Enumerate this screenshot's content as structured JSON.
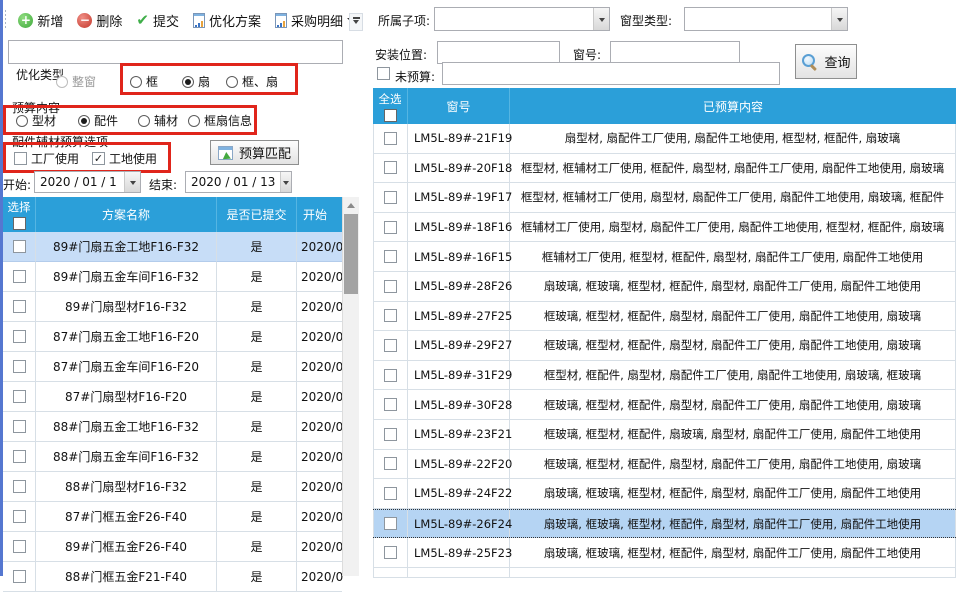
{
  "toolbar": {
    "add": "新增",
    "delete": "删除",
    "submit": "提交",
    "optimize_plan": "优化方案",
    "purchase_detail": "采购明细"
  },
  "left_panel": {
    "search_value": "",
    "opt_type": {
      "label": "优化类型",
      "options": [
        {
          "label": "整窗",
          "checked": false,
          "disabled": true
        },
        {
          "label": "框",
          "checked": false,
          "disabled": false
        },
        {
          "label": "扇",
          "checked": true,
          "disabled": false
        },
        {
          "label": "框、扇",
          "checked": false,
          "disabled": false
        }
      ]
    },
    "budget_content": {
      "label": "预算内容",
      "options": [
        {
          "label": "型材",
          "checked": false,
          "disabled": false
        },
        {
          "label": "配件",
          "checked": true,
          "disabled": false
        },
        {
          "label": "辅材",
          "checked": false,
          "disabled": false
        },
        {
          "label": "框扇信息",
          "checked": false,
          "disabled": false
        }
      ]
    },
    "accessory": {
      "label": "配件辅材预算选项",
      "options": [
        {
          "label": "工厂使用",
          "checked": false
        },
        {
          "label": "工地使用",
          "checked": true
        }
      ]
    },
    "budget_match": "预算匹配",
    "date_start_label": "开始:",
    "date_start": "2020 / 01 / 1",
    "date_end_label": "结束:",
    "date_end": "2020 / 01 / 13",
    "table": {
      "headers": [
        "选择",
        "方案名称",
        "是否已提交",
        "开始"
      ],
      "rows": [
        {
          "name": "89#门扇五金工地F16-F32",
          "submitted": "是",
          "start": "2020/0",
          "selected": true
        },
        {
          "name": "89#门扇五金车间F16-F32",
          "submitted": "是",
          "start": "2020/0",
          "selected": false
        },
        {
          "name": "89#门扇型材F16-F32",
          "submitted": "是",
          "start": "2020/0",
          "selected": false
        },
        {
          "name": "87#门扇五金工地F16-F20",
          "submitted": "是",
          "start": "2020/0",
          "selected": false
        },
        {
          "name": "87#门扇五金车间F16-F20",
          "submitted": "是",
          "start": "2020/0",
          "selected": false
        },
        {
          "name": "87#门扇型材F16-F20",
          "submitted": "是",
          "start": "2020/0",
          "selected": false
        },
        {
          "name": "88#门扇五金工地F16-F32",
          "submitted": "是",
          "start": "2020/0",
          "selected": false
        },
        {
          "name": "88#门扇五金车间F16-F32",
          "submitted": "是",
          "start": "2020/0",
          "selected": false
        },
        {
          "name": "88#门扇型材F16-F32",
          "submitted": "是",
          "start": "2020/0",
          "selected": false
        },
        {
          "name": "87#门框五金F26-F40",
          "submitted": "是",
          "start": "2020/0",
          "selected": false
        },
        {
          "name": "89#门框五金F26-F40",
          "submitted": "是",
          "start": "2020/0",
          "selected": false
        },
        {
          "name": "88#门框五金F21-F40",
          "submitted": "是",
          "start": "2020/0",
          "selected": false
        }
      ]
    }
  },
  "right_panel": {
    "filters": {
      "sub_item_label": "所属子项:",
      "sub_item_value": "",
      "window_type_label": "窗型类型:",
      "window_type_value": "",
      "install_pos_label": "安装位置:",
      "install_pos_value": "",
      "window_no_label": "窗号:",
      "window_no_value": "",
      "not_budgeted_label": "未预算:",
      "not_budgeted_value": "",
      "not_budgeted_checked": false,
      "query_label": "查询"
    },
    "table": {
      "select_all": "全选",
      "headers": [
        "窗号",
        "已预算内容"
      ],
      "rows": [
        {
          "no": "LM5L-89#-21F19",
          "content": "扇型材, 扇配件工厂使用, 扇配件工地使用, 框型材, 框配件, 扇玻璃",
          "selected": false
        },
        {
          "no": "LM5L-89#-20F18",
          "content": "框型材, 框辅材工厂使用, 框配件, 扇型材, 扇配件工厂使用, 扇配件工地使用, 扇玻璃",
          "selected": false
        },
        {
          "no": "LM5L-89#-19F17",
          "content": "框型材, 框辅材工厂使用, 扇型材, 扇配件工厂使用, 扇配件工地使用, 扇玻璃, 框配件",
          "selected": false
        },
        {
          "no": "LM5L-89#-18F16",
          "content": "框辅材工厂使用, 扇型材, 扇配件工厂使用, 扇配件工地使用, 框型材, 框配件, 扇玻璃",
          "selected": false
        },
        {
          "no": "LM5L-89#-16F15",
          "content": "框辅材工厂使用, 框型材, 框配件, 扇型材, 扇配件工厂使用, 扇配件工地使用",
          "selected": false
        },
        {
          "no": "LM5L-89#-28F26",
          "content": "扇玻璃, 框玻璃, 框型材, 框配件, 扇型材, 扇配件工厂使用, 扇配件工地使用",
          "selected": false
        },
        {
          "no": "LM5L-89#-27F25",
          "content": "框玻璃, 框型材, 框配件, 扇型材, 扇配件工厂使用, 扇配件工地使用, 扇玻璃",
          "selected": false
        },
        {
          "no": "LM5L-89#-29F27",
          "content": "框玻璃, 框型材, 框配件, 扇型材, 扇配件工厂使用, 扇配件工地使用, 扇玻璃",
          "selected": false
        },
        {
          "no": "LM5L-89#-31F29",
          "content": "框型材, 框配件, 扇型材, 扇配件工厂使用, 扇配件工地使用, 扇玻璃, 框玻璃",
          "selected": false
        },
        {
          "no": "LM5L-89#-30F28",
          "content": "框玻璃, 框型材, 框配件, 扇型材, 扇配件工厂使用, 扇配件工地使用, 扇玻璃",
          "selected": false
        },
        {
          "no": "LM5L-89#-23F21",
          "content": "框玻璃, 框型材, 框配件, 扇玻璃, 扇型材, 扇配件工厂使用, 扇配件工地使用",
          "selected": false
        },
        {
          "no": "LM5L-89#-22F20",
          "content": "框玻璃, 框型材, 框配件, 扇型材, 扇配件工厂使用, 扇配件工地使用, 扇玻璃",
          "selected": false
        },
        {
          "no": "LM5L-89#-24F22",
          "content": "扇玻璃, 框玻璃, 框型材, 框配件, 扇型材, 扇配件工厂使用, 扇配件工地使用",
          "selected": false
        },
        {
          "no": "LM5L-89#-26F24",
          "content": "扇玻璃, 框玻璃, 框型材, 框配件, 扇型材, 扇配件工厂使用, 扇配件工地使用",
          "selected": true
        },
        {
          "no": "LM5L-89#-25F23",
          "content": "扇玻璃, 框玻璃, 框型材, 框配件, 扇型材, 扇配件工厂使用, 扇配件工地使用",
          "selected": false
        }
      ]
    }
  },
  "colors": {
    "header_blue": "#2b9fd9",
    "row_highlight": "#c7ddf7",
    "row_selected": "#b5d4f3",
    "annotation_red": "#e0251b"
  }
}
